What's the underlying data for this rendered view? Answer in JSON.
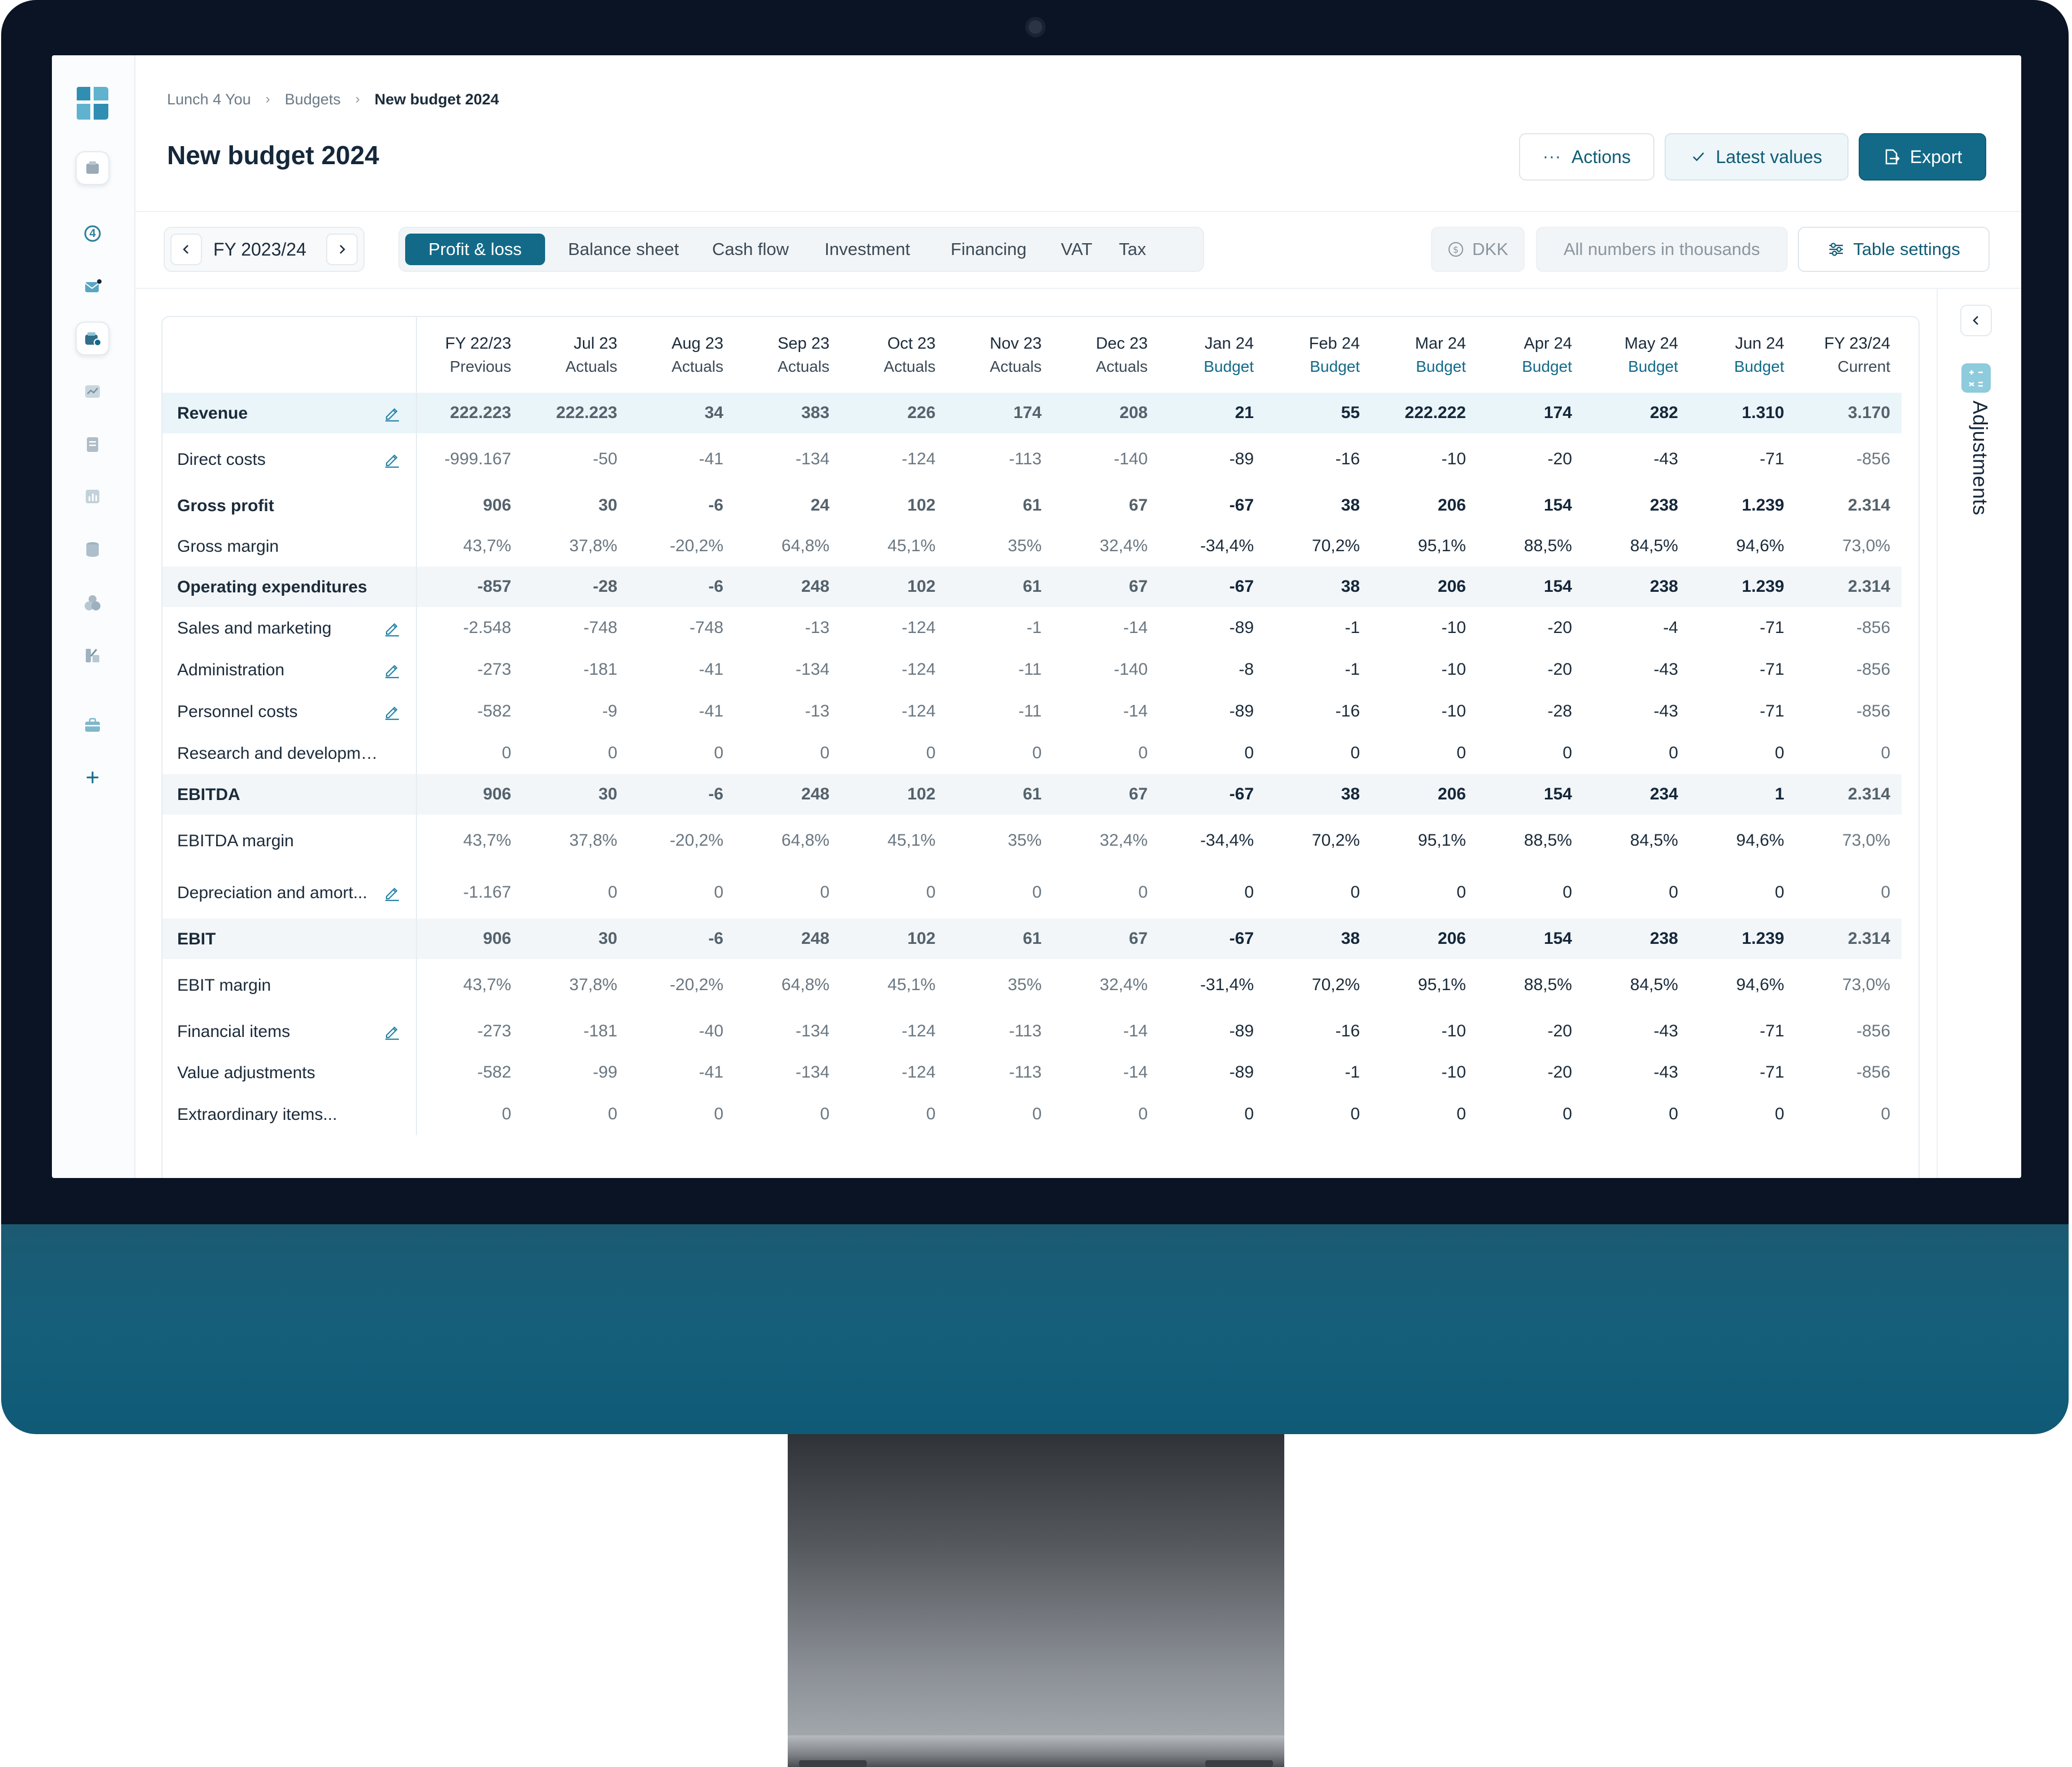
{
  "breadcrumb": {
    "items": [
      "Lunch 4 You",
      "Budgets"
    ],
    "current": "New budget 2024"
  },
  "page": {
    "title": "New budget 2024"
  },
  "header_buttons": {
    "actions": "Actions",
    "latest_values": "Latest values",
    "export": "Export"
  },
  "period": {
    "label": "FY 2023/24"
  },
  "tabs": [
    "Profit & loss",
    "Balance sheet",
    "Cash flow",
    "Investment",
    "Financing",
    "VAT",
    "Tax"
  ],
  "active_tab": "Profit & loss",
  "currency": "DKK",
  "numbers_note": "All numbers in thousands",
  "table_settings": "Table settings",
  "side_panel": {
    "label": "Adjustments"
  },
  "sidebar_icons": [
    "logo",
    "company-icon",
    "notification-count-icon",
    "inbox-icon",
    "budget-icon",
    "trend-icon",
    "document-icon",
    "report-chart-icon",
    "database-icon",
    "users-icon",
    "integrations-icon",
    "briefcase-icon",
    "add-icon"
  ],
  "sidebar_badge": "4",
  "colors": {
    "accent": "#126a88",
    "budget_label": "#126a88",
    "row_highlight": "#f2f6f9"
  },
  "table": {
    "columns": [
      {
        "label": "FY 22/23",
        "sub": "Previous",
        "type": "prev"
      },
      {
        "label": "Jul 23",
        "sub": "Actuals",
        "type": "actual"
      },
      {
        "label": "Aug 23",
        "sub": "Actuals",
        "type": "actual"
      },
      {
        "label": "Sep 23",
        "sub": "Actuals",
        "type": "actual"
      },
      {
        "label": "Oct 23",
        "sub": "Actuals",
        "type": "actual"
      },
      {
        "label": "Nov 23",
        "sub": "Actuals",
        "type": "actual"
      },
      {
        "label": "Dec 23",
        "sub": "Actuals",
        "type": "actual"
      },
      {
        "label": "Jan 24",
        "sub": "Budget",
        "type": "budget"
      },
      {
        "label": "Feb 24",
        "sub": "Budget",
        "type": "budget"
      },
      {
        "label": "Mar 24",
        "sub": "Budget",
        "type": "budget"
      },
      {
        "label": "Apr 24",
        "sub": "Budget",
        "type": "budget"
      },
      {
        "label": "May 24",
        "sub": "Budget",
        "type": "budget"
      },
      {
        "label": "Jun 24",
        "sub": "Budget",
        "type": "budget"
      },
      {
        "label": "FY 23/24",
        "sub": "Current",
        "type": "current"
      }
    ],
    "rows": [
      {
        "label": "Revenue",
        "style": "bold-blue",
        "editable": true,
        "values": [
          "222.223",
          "222.223",
          "34",
          "383",
          "226",
          "174",
          "208",
          "21",
          "55",
          "222.222",
          "174",
          "282",
          "1.310",
          "3.170"
        ]
      },
      {
        "label": "Direct costs",
        "style": "normal",
        "editable": true,
        "values": [
          "-999.167",
          "-50",
          "-41",
          "-134",
          "-124",
          "-113",
          "-140",
          "-89",
          "-16",
          "-10",
          "-20",
          "-43",
          "-71",
          "-856"
        ]
      },
      {
        "label": "Gross profit",
        "style": "bold",
        "editable": false,
        "values": [
          "906",
          "30",
          "-6",
          "24",
          "102",
          "61",
          "67",
          "-67",
          "38",
          "206",
          "154",
          "238",
          "1.239",
          "2.314"
        ]
      },
      {
        "label": "Gross margin",
        "style": "normal",
        "editable": false,
        "values": [
          "43,7%",
          "37,8%",
          "-20,2%",
          "64,8%",
          "45,1%",
          "35%",
          "32,4%",
          "-34,4%",
          "70,2%",
          "95,1%",
          "88,5%",
          "84,5%",
          "94,6%",
          "73,0%"
        ]
      },
      {
        "label": "Operating expenditures",
        "style": "bold-hl",
        "editable": false,
        "values": [
          "-857",
          "-28",
          "-6",
          "248",
          "102",
          "61",
          "67",
          "-67",
          "38",
          "206",
          "154",
          "238",
          "1.239",
          "2.314"
        ]
      },
      {
        "label": "Sales and marketing",
        "style": "normal",
        "editable": true,
        "values": [
          "-2.548",
          "-748",
          "-748",
          "-13",
          "-124",
          "-1",
          "-14",
          "-89",
          "-1",
          "-10",
          "-20",
          "-4",
          "-71",
          "-856"
        ]
      },
      {
        "label": "Administration",
        "style": "normal",
        "editable": true,
        "values": [
          "-273",
          "-181",
          "-41",
          "-134",
          "-124",
          "-11",
          "-140",
          "-8",
          "-1",
          "-10",
          "-20",
          "-43",
          "-71",
          "-856"
        ]
      },
      {
        "label": "Personnel costs",
        "style": "normal",
        "editable": true,
        "values": [
          "-582",
          "-9",
          "-41",
          "-13",
          "-124",
          "-11",
          "-14",
          "-89",
          "-16",
          "-10",
          "-28",
          "-43",
          "-71",
          "-856"
        ]
      },
      {
        "label": "Research and development",
        "style": "normal",
        "editable": false,
        "values": [
          "0",
          "0",
          "0",
          "0",
          "0",
          "0",
          "0",
          "0",
          "0",
          "0",
          "0",
          "0",
          "0",
          "0"
        ]
      },
      {
        "label": "EBITDA",
        "style": "bold-hl",
        "editable": false,
        "values": [
          "906",
          "30",
          "-6",
          "248",
          "102",
          "61",
          "67",
          "-67",
          "38",
          "206",
          "154",
          "234",
          "1",
          "2.314"
        ]
      },
      {
        "label": "EBITDA margin",
        "style": "normal",
        "editable": false,
        "values": [
          "43,7%",
          "37,8%",
          "-20,2%",
          "64,8%",
          "45,1%",
          "35%",
          "32,4%",
          "-34,4%",
          "70,2%",
          "95,1%",
          "88,5%",
          "84,5%",
          "94,6%",
          "73,0%"
        ]
      },
      {
        "label": "Depreciation and amort...",
        "style": "normal",
        "editable": true,
        "values": [
          "-1.167",
          "0",
          "0",
          "0",
          "0",
          "0",
          "0",
          "0",
          "0",
          "0",
          "0",
          "0",
          "0",
          "0"
        ]
      },
      {
        "label": "EBIT",
        "style": "bold-hl",
        "editable": false,
        "values": [
          "906",
          "30",
          "-6",
          "248",
          "102",
          "61",
          "67",
          "-67",
          "38",
          "206",
          "154",
          "238",
          "1.239",
          "2.314"
        ]
      },
      {
        "label": "EBIT margin",
        "style": "normal",
        "editable": false,
        "values": [
          "43,7%",
          "37,8%",
          "-20,2%",
          "64,8%",
          "45,1%",
          "35%",
          "32,4%",
          "-31,4%",
          "70,2%",
          "95,1%",
          "88,5%",
          "84,5%",
          "94,6%",
          "73,0%"
        ]
      },
      {
        "label": "Financial items",
        "style": "normal",
        "editable": true,
        "values": [
          "-273",
          "-181",
          "-40",
          "-134",
          "-124",
          "-113",
          "-14",
          "-89",
          "-16",
          "-10",
          "-20",
          "-43",
          "-71",
          "-856"
        ]
      },
      {
        "label": "Value adjustments",
        "style": "normal",
        "editable": false,
        "values": [
          "-582",
          "-99",
          "-41",
          "-134",
          "-124",
          "-113",
          "-14",
          "-89",
          "-1",
          "-10",
          "-20",
          "-43",
          "-71",
          "-856"
        ]
      },
      {
        "label": "Extraordinary items...",
        "style": "normal",
        "editable": false,
        "values": [
          "0",
          "0",
          "0",
          "0",
          "0",
          "0",
          "0",
          "0",
          "0",
          "0",
          "0",
          "0",
          "0",
          "0"
        ]
      }
    ]
  }
}
